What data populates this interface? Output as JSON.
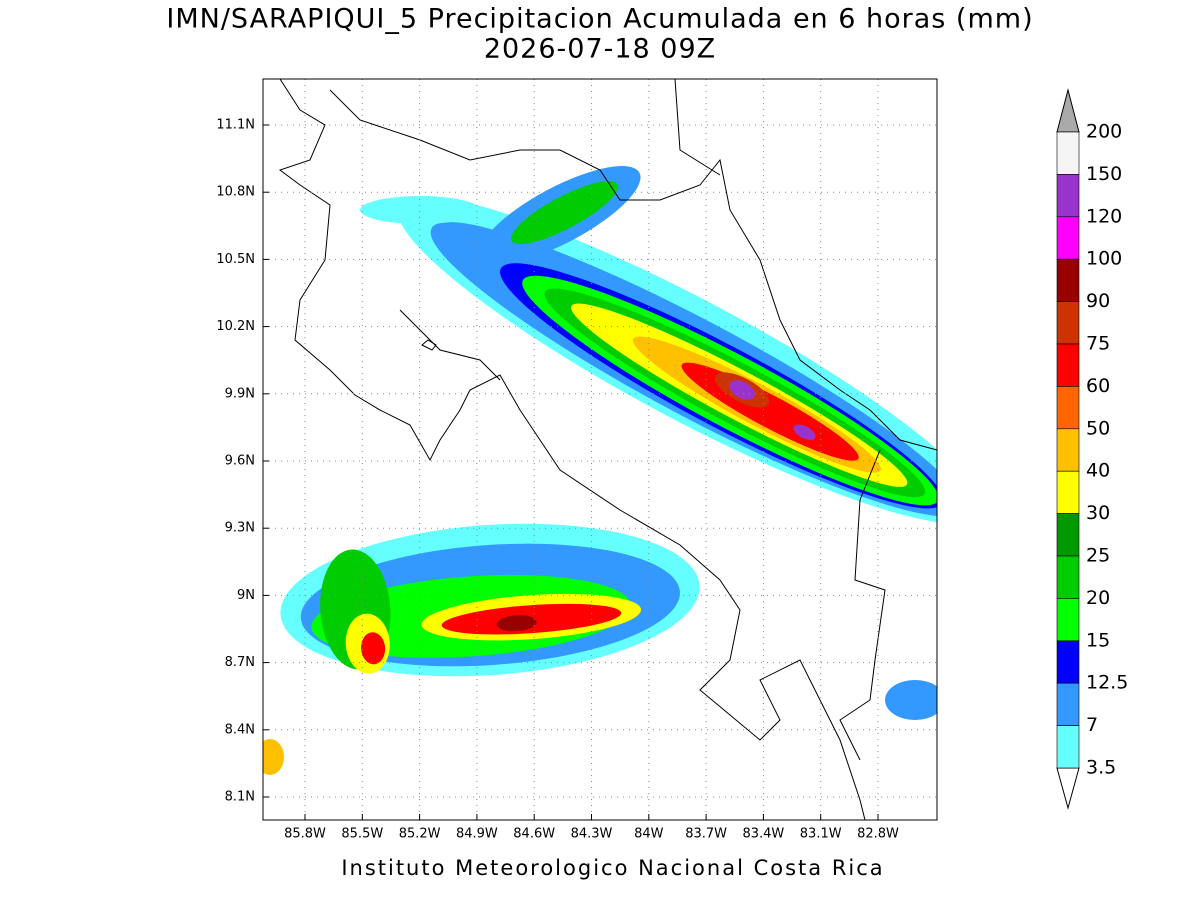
{
  "title": "IMN/SARAPIQUI_5 Precipitacion Acumulada en 6 horas (mm)",
  "subtitle": "2026-07-18 09Z",
  "lon_ticks": [
    "85.8W",
    "85.5W",
    "85.2W",
    "84.9W",
    "84.6W",
    "84.3W",
    "84W",
    "83.7W",
    "83.4W",
    "83.1W",
    "82.8W"
  ],
  "lat_ticks": [
    "11.1N",
    "10.8N",
    "10.5N",
    "10.2N",
    "9.9N",
    "9.6N",
    "9.3N",
    "9N",
    "8.7N",
    "8.4N",
    "8.1N"
  ],
  "colorbar": {
    "levels": [
      200,
      150,
      120,
      100,
      90,
      75,
      60,
      50,
      40,
      30,
      25,
      20,
      15,
      12.5,
      7,
      3.5
    ],
    "colors": [
      "#f5f5f5",
      "#9933cc",
      "#ff00ff",
      "#990000",
      "#cc3300",
      "#ff0000",
      "#ff6600",
      "#ffc000",
      "#ffff00",
      "#009900",
      "#00cc00",
      "#00ff00",
      "#0000ff",
      "#3399ff",
      "#66ffff"
    ]
  },
  "footer": "Instituto Meteorologico Nacional Costa Rica"
}
